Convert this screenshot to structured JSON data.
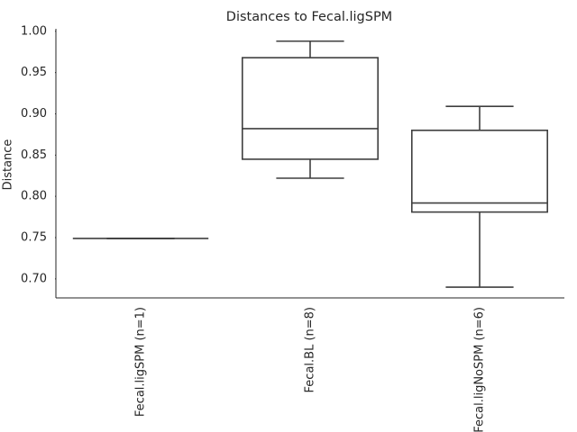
{
  "chart_data": {
    "type": "box",
    "title": "Distances to Fecal.ligSPM",
    "y_label": "Distance",
    "categories": [
      "Fecal.ligSPM (n=1)",
      "Fecal.BL (n=8)",
      "Fecal.ligNoSPM (n=6)"
    ],
    "boxes": [
      {
        "whislo": 0.749,
        "q1": 0.749,
        "med": 0.749,
        "q3": 0.749,
        "whishi": 0.749
      },
      {
        "whislo": 0.822,
        "q1": 0.845,
        "med": 0.882,
        "q3": 0.968,
        "whishi": 0.988
      },
      {
        "whislo": 0.69,
        "q1": 0.781,
        "med": 0.792,
        "q3": 0.88,
        "whishi": 0.909
      }
    ],
    "color": "#ffffff",
    "edge_color": "#3f3f3f",
    "ylim": [
      0.677,
      1.003
    ],
    "yticks": [
      {
        "value": 0.7,
        "label": "0.70"
      },
      0.75,
      {
        "value": 0.8,
        "label": "0.80"
      },
      0.85,
      {
        "value": 0.9,
        "label": "0.90"
      },
      0.95,
      {
        "value": 1,
        "label": "1.00"
      }
    ]
  }
}
